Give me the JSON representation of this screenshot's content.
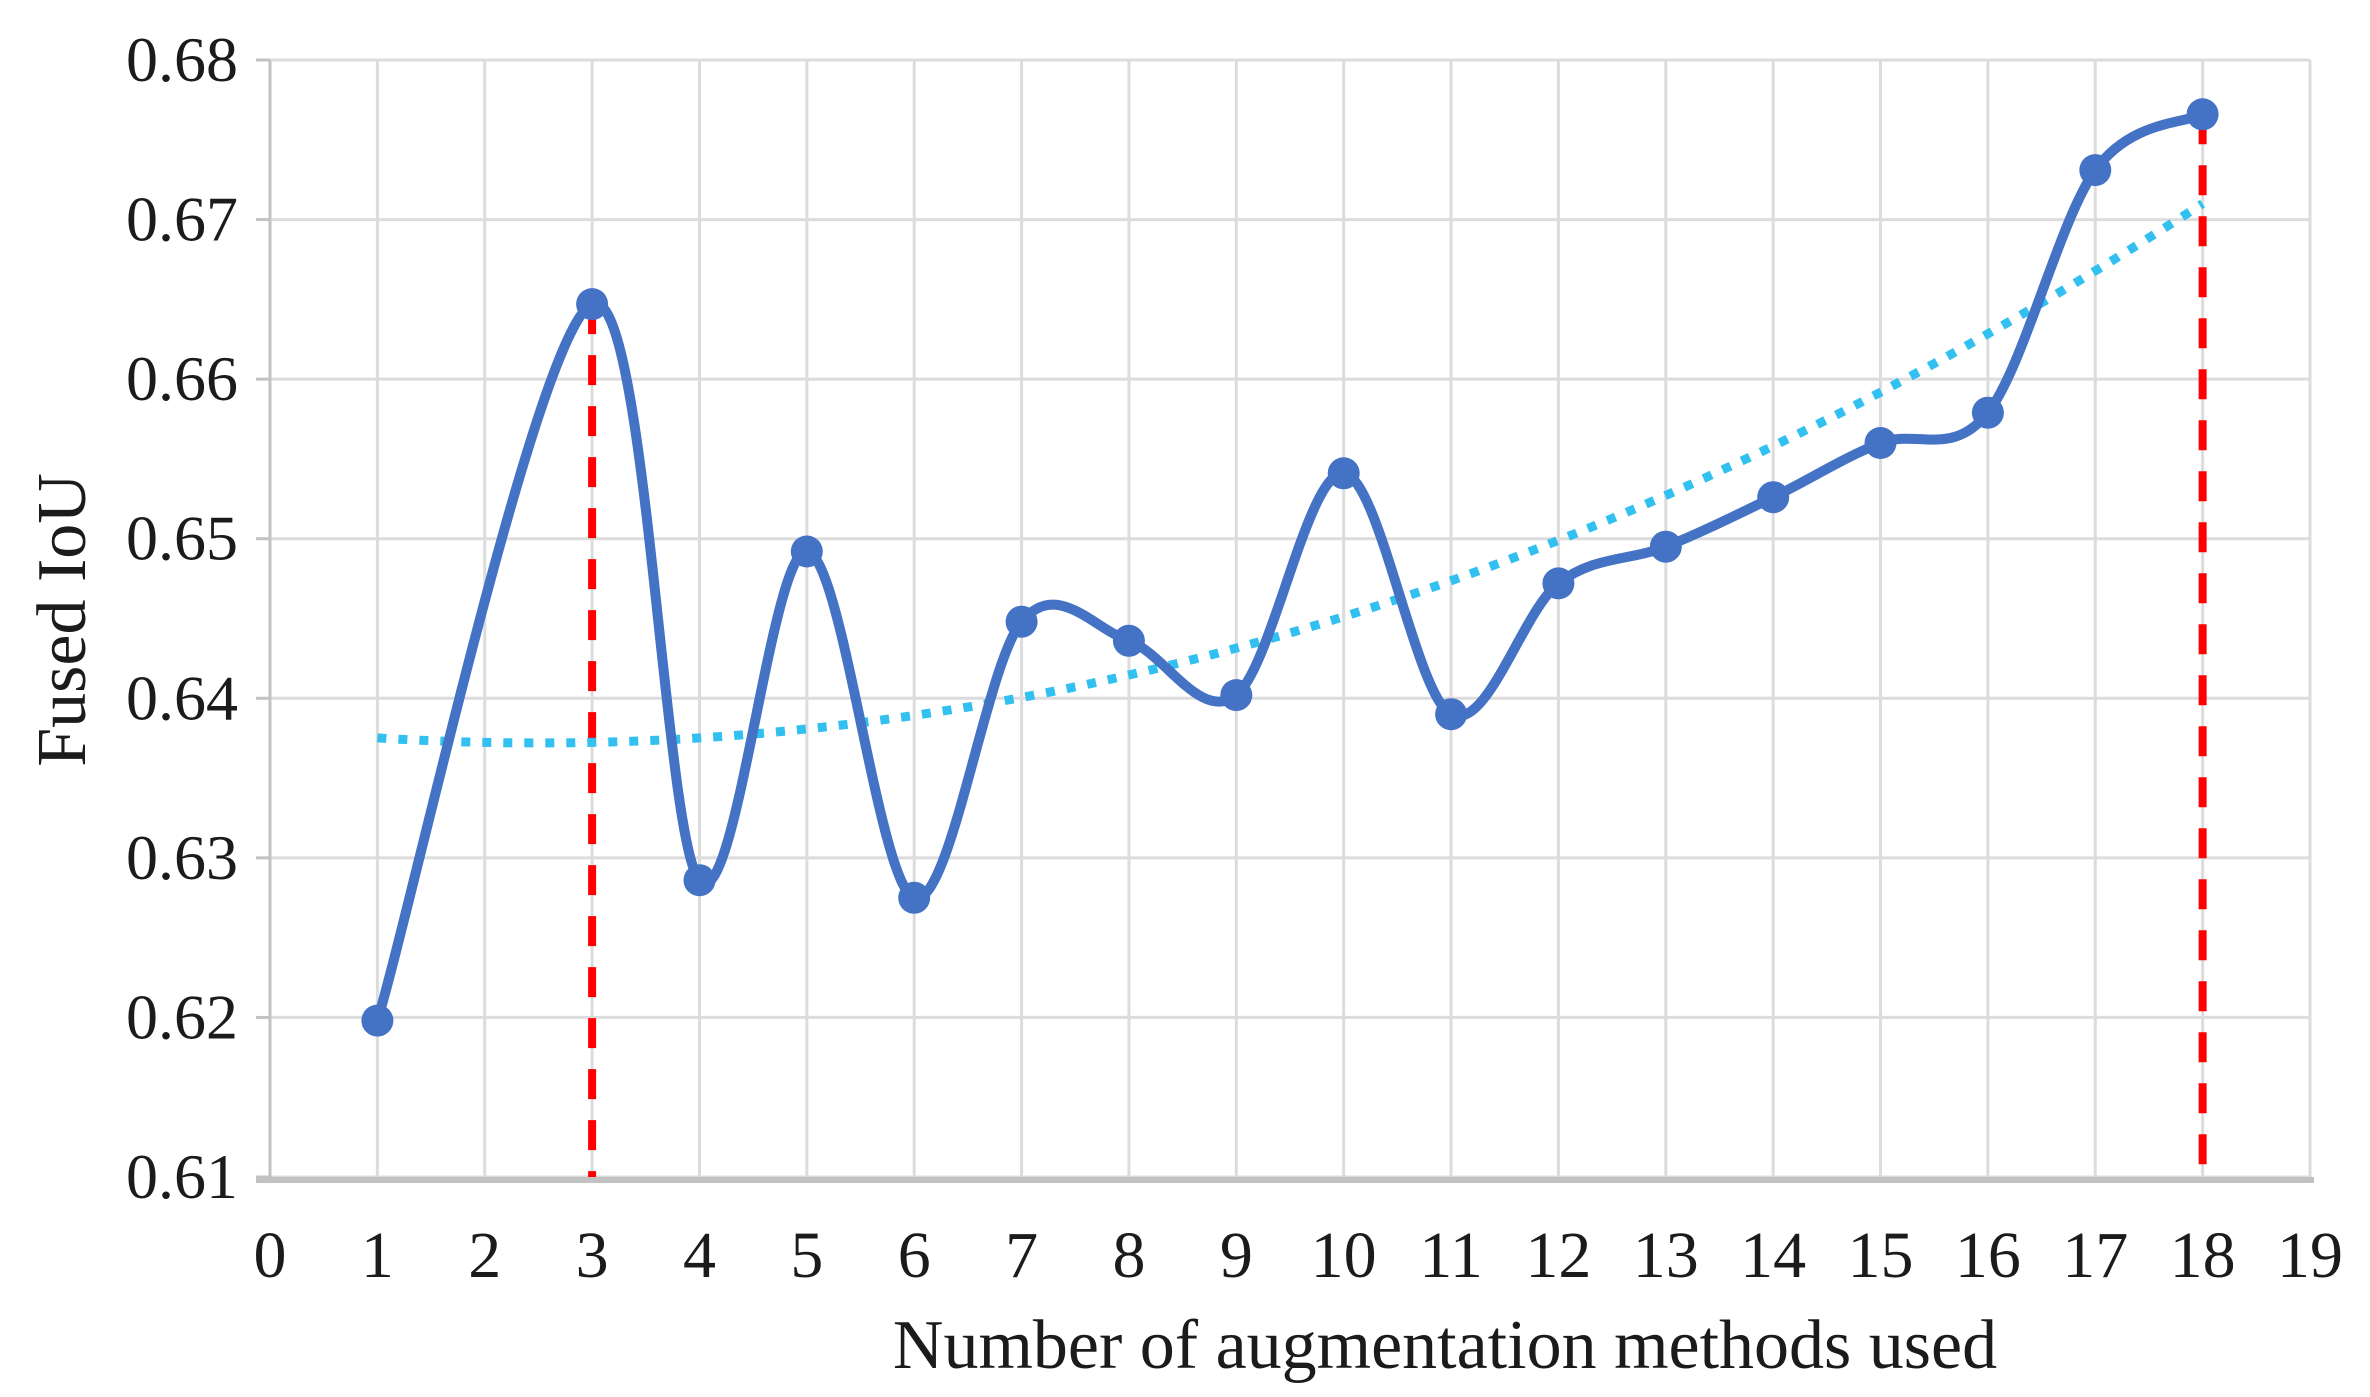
{
  "chart_data": {
    "type": "line",
    "title": "",
    "xlabel": "Number of augmentation methods used",
    "ylabel": "Fused IoU",
    "xlim": [
      0,
      19
    ],
    "ylim": [
      0.61,
      0.68
    ],
    "grid": true,
    "legend_position": "none",
    "x_tick_labels": [
      "0",
      "1",
      "2",
      "3",
      "4",
      "5",
      "6",
      "7",
      "8",
      "9",
      "10",
      "11",
      "12",
      "13",
      "14",
      "15",
      "16",
      "17",
      "18",
      "19"
    ],
    "y_tick_labels": [
      "0.61",
      "0.62",
      "0.63",
      "0.64",
      "0.65",
      "0.66",
      "0.67",
      "0.68"
    ],
    "series": [
      {
        "name": "fused-iou-series",
        "style": "smooth-line-with-markers",
        "color": "#4472C4",
        "x": [
          1,
          3,
          4,
          5,
          6,
          7,
          8,
          9,
          10,
          11,
          12,
          13,
          14,
          15,
          16,
          17,
          18
        ],
        "y": [
          0.6198,
          0.6647,
          0.6286,
          0.6492,
          0.6275,
          0.6448,
          0.6436,
          0.6402,
          0.6541,
          0.639,
          0.6472,
          0.6495,
          0.6526,
          0.656,
          0.6579,
          0.6731,
          0.6766
        ]
      },
      {
        "name": "trend-dotted-series",
        "style": "dotted-quadratic-trendline",
        "color": "#31C0F0",
        "a": 0.0001407,
        "vertex_x": 2.5,
        "vertex_y": 0.6372,
        "x_start": 1,
        "x_end": 18
      }
    ],
    "annotations": {
      "red_dashed_vertical_x": [
        3,
        18
      ],
      "red_dashed_color": "#FF0000"
    }
  },
  "colors": {
    "gridline": "#DCDCDC",
    "axis_line": "#C2C2C2",
    "text": "#1b1b1b",
    "background": "#ffffff"
  }
}
